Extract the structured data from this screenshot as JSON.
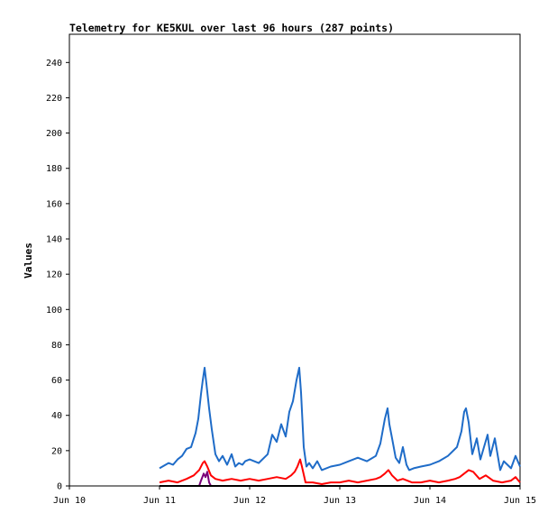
{
  "chart_data": {
    "type": "line",
    "title": "Telemetry for KE5KUL over last 96 hours (287 points)",
    "xlabel": "",
    "ylabel": "Values",
    "x_range": [
      "Jun 10",
      "Jun 15"
    ],
    "x_tick_labels": [
      "Jun 10",
      "Jun 11",
      "Jun 12",
      "Jun 13",
      "Jun 14",
      "Jun 15"
    ],
    "y_ticks": [
      0,
      20,
      40,
      60,
      80,
      100,
      120,
      140,
      160,
      180,
      200,
      220,
      240
    ],
    "ylim": [
      0,
      256
    ],
    "grid": false,
    "legend": "none",
    "data_start_day": 11,
    "series": [
      {
        "color": "#1f6cc8",
        "x_days": [
          11.0,
          11.1,
          11.15,
          11.2,
          11.25,
          11.3,
          11.35,
          11.4,
          11.43,
          11.46,
          11.48,
          11.5,
          11.52,
          11.55,
          11.58,
          11.62,
          11.66,
          11.7,
          11.75,
          11.8,
          11.84,
          11.88,
          11.92,
          11.95,
          12.0,
          12.1,
          12.2,
          12.25,
          12.3,
          12.35,
          12.4,
          12.44,
          12.48,
          12.52,
          12.55,
          12.57,
          12.6,
          12.63,
          12.66,
          12.7,
          12.75,
          12.8,
          12.9,
          13.0,
          13.1,
          13.2,
          13.3,
          13.4,
          13.45,
          13.5,
          13.53,
          13.55,
          13.58,
          13.62,
          13.66,
          13.7,
          13.74,
          13.77,
          13.82,
          13.9,
          14.0,
          14.1,
          14.2,
          14.3,
          14.35,
          14.38,
          14.4,
          14.43,
          14.47,
          14.52,
          14.56,
          14.6,
          14.64,
          14.67,
          14.72,
          14.78,
          14.82,
          14.86,
          14.9,
          14.95,
          15.0
        ],
        "values": [
          10,
          13,
          12,
          15,
          17,
          21,
          22,
          30,
          38,
          52,
          60,
          67,
          58,
          44,
          32,
          18,
          14,
          17,
          12,
          18,
          11,
          13,
          12,
          14,
          15,
          13,
          18,
          29,
          25,
          35,
          28,
          42,
          48,
          60,
          67,
          53,
          22,
          11,
          13,
          10,
          14,
          9,
          11,
          12,
          14,
          16,
          14,
          17,
          24,
          38,
          44,
          35,
          27,
          16,
          13,
          22,
          12,
          9,
          10,
          11,
          12,
          14,
          17,
          22,
          31,
          42,
          44,
          36,
          18,
          27,
          15,
          22,
          29,
          17,
          27,
          9,
          14,
          12,
          10,
          17,
          11
        ]
      },
      {
        "color": "#ff0000",
        "x_days": [
          11.0,
          11.1,
          11.2,
          11.3,
          11.38,
          11.44,
          11.48,
          11.5,
          11.53,
          11.57,
          11.62,
          11.7,
          11.8,
          11.9,
          12.0,
          12.1,
          12.2,
          12.3,
          12.4,
          12.46,
          12.5,
          12.53,
          12.56,
          12.58,
          12.62,
          12.7,
          12.8,
          12.9,
          13.0,
          13.1,
          13.2,
          13.3,
          13.4,
          13.45,
          13.5,
          13.54,
          13.58,
          13.64,
          13.7,
          13.8,
          13.9,
          14.0,
          14.1,
          14.2,
          14.28,
          14.33,
          14.38,
          14.43,
          14.48,
          14.55,
          14.62,
          14.7,
          14.8,
          14.9,
          14.95,
          15.0
        ],
        "values": [
          2,
          3,
          2,
          4,
          6,
          9,
          13,
          14,
          11,
          6,
          4,
          3,
          4,
          3,
          4,
          3,
          4,
          5,
          4,
          6,
          8,
          11,
          15,
          11,
          2,
          2,
          1,
          2,
          2,
          3,
          2,
          3,
          4,
          5,
          7,
          9,
          6,
          3,
          4,
          2,
          2,
          3,
          2,
          3,
          4,
          5,
          7,
          9,
          8,
          4,
          6,
          3,
          2,
          3,
          5,
          2
        ]
      },
      {
        "color": "#7a007a",
        "x_days": [
          11.0,
          11.44,
          11.46,
          11.49,
          11.51,
          11.53,
          11.55,
          11.57,
          11.6,
          12.0,
          12.5,
          13.0,
          14.0,
          15.0
        ],
        "values": [
          0,
          0,
          3,
          7,
          5,
          8,
          2,
          0,
          0,
          0,
          0,
          0,
          0,
          0
        ]
      },
      {
        "color": "#000000",
        "x_days": [
          11.0,
          15.0
        ],
        "values": [
          0,
          0
        ]
      }
    ]
  }
}
